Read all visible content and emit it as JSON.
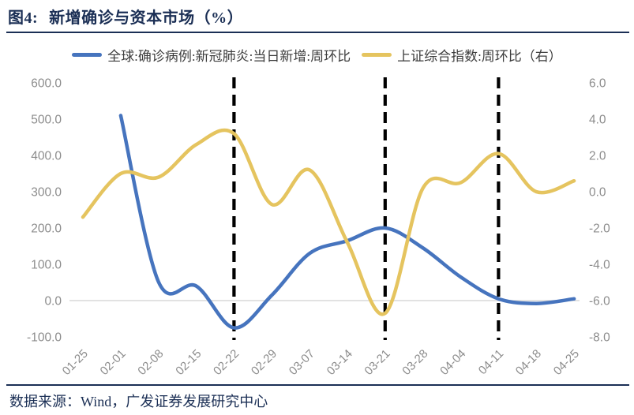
{
  "figure": {
    "label": "图4:",
    "title": "新增确诊与资本市场（%）"
  },
  "legend": [
    {
      "name": "全球:确诊病例:新冠肺炎:当日新增:周环比",
      "color": "#4674be"
    },
    {
      "name": "上证综合指数:周环比（右）",
      "color": "#e5c45f"
    }
  ],
  "footer": {
    "source": "数据来源：Wind，广发证券发展研究中心"
  },
  "colors": {
    "title_navy": "#1b2f55",
    "axis_text_gray": "#8c8c8c",
    "legend_text_gray": "#3d3d3d",
    "gridline_gray": "#d9d9d9",
    "event_marker_black": "#000000",
    "series_blue": "#4674be",
    "series_gold": "#e5c45f"
  },
  "chart_data": {
    "type": "line",
    "title": "新增确诊与资本市场（%）",
    "categories": [
      "01-25",
      "02-01",
      "02-08",
      "02-15",
      "02-22",
      "02-29",
      "03-07",
      "03-14",
      "03-21",
      "03-28",
      "04-04",
      "04-11",
      "04-18",
      "04-25"
    ],
    "series": [
      {
        "name": "全球:确诊病例:新冠肺炎:当日新增:周环比",
        "axis": "left",
        "color": "#4674be",
        "values": [
          null,
          510,
          52,
          40,
          -75,
          15,
          130,
          165,
          200,
          145,
          65,
          5,
          -8,
          5
        ]
      },
      {
        "name": "上证综合指数:周环比（右）",
        "axis": "right",
        "color": "#e5c45f",
        "values": [
          -1.4,
          1.0,
          0.8,
          2.6,
          3.2,
          -0.7,
          1.2,
          -2.8,
          -6.7,
          0.2,
          0.5,
          2.1,
          0.0,
          0.6
        ]
      }
    ],
    "left_axis": {
      "ticks": [
        "600.0",
        "500.0",
        "400.0",
        "300.0",
        "200.0",
        "100.0",
        "0.0",
        "-100.0"
      ],
      "min": -100,
      "max": 600
    },
    "right_axis": {
      "ticks": [
        "6.0",
        "4.0",
        "2.0",
        "0.0",
        "-2.0",
        "-4.0",
        "-6.0",
        "-8.0"
      ],
      "min": -8,
      "max": 6
    },
    "gridlines": {
      "horizontal_at_left_value": [
        0
      ]
    },
    "dashed_markers": [
      "02-22",
      "03-21",
      "04-11"
    ],
    "legend_position": "top",
    "smooth_lines": true
  }
}
